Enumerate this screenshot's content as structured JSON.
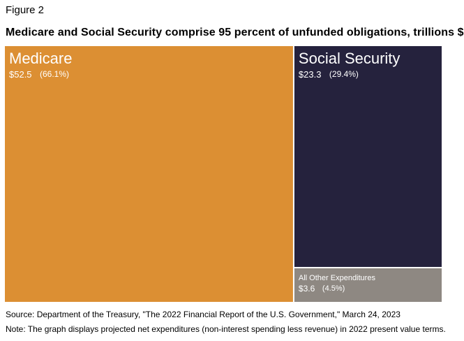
{
  "figure_label": "Figure 2",
  "title": "Medicare and Social Security comprise 95 percent of unfunded obligations, trillions $",
  "source": "Source: Department of the Treasury, \"The 2022 Financial Report of the U.S. Government,\" March 24, 2023",
  "note": "Note: The graph displays projected net expenditures (non-interest spending less revenue) in 2022 present value terms.",
  "chart_data": {
    "type": "treemap",
    "title": "Medicare and Social Security comprise 95 percent of unfunded obligations, trillions $",
    "units": "trillions $",
    "items": [
      {
        "name": "Medicare",
        "value": 52.5,
        "value_label": "$52.5",
        "percent_label": "(66.1%)",
        "color": "#dc8f33",
        "text_color": "#ffffff"
      },
      {
        "name": "Social Security",
        "value": 23.3,
        "value_label": "$23.3",
        "percent_label": "(29.4%)",
        "color": "#25223d",
        "text_color": "#ffffff"
      },
      {
        "name": "All Other Expenditures",
        "value": 3.6,
        "value_label": "$3.6",
        "percent_label": "(4.5%)",
        "color": "#8e8882",
        "text_color": "#ffffff"
      }
    ]
  }
}
